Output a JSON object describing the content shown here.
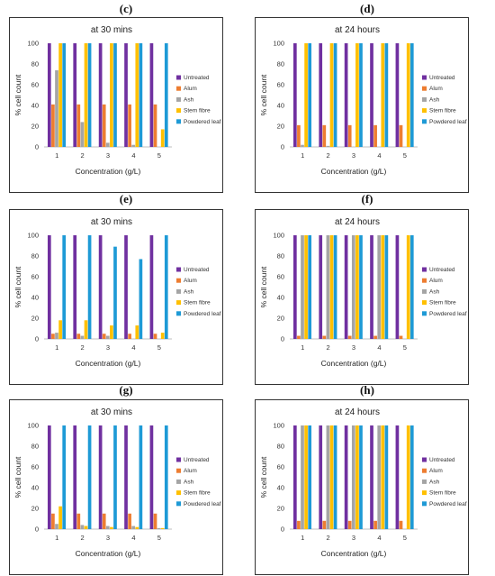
{
  "colors": {
    "Untreated": "#7030A0",
    "Alum": "#ED7D31",
    "Ash": "#A5A5A5",
    "Stem fibre": "#FFC000",
    "Powdered leaf": "#1E9AD6"
  },
  "chart_data": [
    {
      "panel": "(c)",
      "type": "bar",
      "title": "at 30 mins",
      "xlabel": "Concentration (g/L)",
      "ylabel": "% cell count",
      "ylim": [
        0,
        100
      ],
      "yticks": [
        0,
        20,
        40,
        60,
        80,
        100
      ],
      "categories": [
        "1",
        "2",
        "3",
        "4",
        "5"
      ],
      "series": [
        {
          "name": "Untreated",
          "values": [
            100,
            100,
            100,
            100,
            100
          ]
        },
        {
          "name": "Alum",
          "values": [
            41,
            41,
            41,
            41,
            41
          ]
        },
        {
          "name": "Ash",
          "values": [
            74,
            24,
            4,
            2,
            0
          ]
        },
        {
          "name": "Stem fibre",
          "values": [
            100,
            100,
            100,
            100,
            17
          ]
        },
        {
          "name": "Powdered leaf",
          "values": [
            100,
            100,
            100,
            100,
            100
          ]
        }
      ]
    },
    {
      "panel": "(d)",
      "type": "bar",
      "title": "at 24 hours",
      "xlabel": "Concentration (g/L)",
      "ylabel": "% cell count",
      "ylim": [
        0,
        100
      ],
      "yticks": [
        0,
        20,
        40,
        60,
        80,
        100
      ],
      "categories": [
        "1",
        "2",
        "3",
        "4",
        "5"
      ],
      "series": [
        {
          "name": "Untreated",
          "values": [
            100,
            100,
            100,
            100,
            100
          ]
        },
        {
          "name": "Alum",
          "values": [
            21,
            21,
            21,
            21,
            21
          ]
        },
        {
          "name": "Ash",
          "values": [
            2,
            1,
            0,
            0,
            0
          ]
        },
        {
          "name": "Stem fibre",
          "values": [
            100,
            100,
            100,
            100,
            100
          ]
        },
        {
          "name": "Powdered leaf",
          "values": [
            100,
            100,
            100,
            100,
            100
          ]
        }
      ]
    },
    {
      "panel": "(e)",
      "type": "bar",
      "title": "at 30 mins",
      "xlabel": "Concentration (g/L)",
      "ylabel": "% cell count",
      "ylim": [
        0,
        100
      ],
      "yticks": [
        0,
        20,
        40,
        60,
        80,
        100
      ],
      "categories": [
        "1",
        "2",
        "3",
        "4",
        "5"
      ],
      "series": [
        {
          "name": "Untreated",
          "values": [
            100,
            100,
            100,
            100,
            100
          ]
        },
        {
          "name": "Alum",
          "values": [
            5,
            5,
            5,
            5,
            5
          ]
        },
        {
          "name": "Ash",
          "values": [
            6,
            3,
            3,
            0,
            0
          ]
        },
        {
          "name": "Stem fibre",
          "values": [
            18,
            18,
            13,
            13,
            6
          ]
        },
        {
          "name": "Powdered leaf",
          "values": [
            100,
            100,
            89,
            77,
            100
          ]
        }
      ]
    },
    {
      "panel": "(f)",
      "type": "bar",
      "title": "at 24 hours",
      "xlabel": "Concentration (g/L)",
      "ylabel": "% cell count",
      "ylim": [
        0,
        100
      ],
      "yticks": [
        0,
        20,
        40,
        60,
        80,
        100
      ],
      "categories": [
        "1",
        "2",
        "3",
        "4",
        "5"
      ],
      "series": [
        {
          "name": "Untreated",
          "values": [
            100,
            100,
            100,
            100,
            100
          ]
        },
        {
          "name": "Alum",
          "values": [
            3,
            3,
            3,
            3,
            3
          ]
        },
        {
          "name": "Ash",
          "values": [
            100,
            100,
            100,
            100,
            0
          ]
        },
        {
          "name": "Stem fibre",
          "values": [
            100,
            100,
            100,
            100,
            100
          ]
        },
        {
          "name": "Powdered leaf",
          "values": [
            100,
            100,
            100,
            100,
            100
          ]
        }
      ]
    },
    {
      "panel": "(g)",
      "type": "bar",
      "title": "at 30 mins",
      "xlabel": "Concentration (g/L)",
      "ylabel": "% cell count",
      "ylim": [
        0,
        100
      ],
      "yticks": [
        0,
        20,
        40,
        60,
        80,
        100
      ],
      "categories": [
        "1",
        "2",
        "3",
        "4",
        "5"
      ],
      "series": [
        {
          "name": "Untreated",
          "values": [
            100,
            100,
            100,
            100,
            100
          ]
        },
        {
          "name": "Alum",
          "values": [
            15,
            15,
            15,
            15,
            15
          ]
        },
        {
          "name": "Ash",
          "values": [
            5,
            4,
            3,
            3,
            1
          ]
        },
        {
          "name": "Stem fibre",
          "values": [
            22,
            3,
            2,
            2,
            1
          ]
        },
        {
          "name": "Powdered leaf",
          "values": [
            100,
            100,
            100,
            100,
            100
          ]
        }
      ]
    },
    {
      "panel": "(h)",
      "type": "bar",
      "title": "at 24 hours",
      "xlabel": "Concentration (g/L)",
      "ylabel": "% cell count",
      "ylim": [
        0,
        100
      ],
      "yticks": [
        0,
        20,
        40,
        60,
        80,
        100
      ],
      "categories": [
        "1",
        "2",
        "3",
        "4",
        "5"
      ],
      "series": [
        {
          "name": "Untreated",
          "values": [
            100,
            100,
            100,
            100,
            100
          ]
        },
        {
          "name": "Alum",
          "values": [
            8,
            8,
            8,
            8,
            8
          ]
        },
        {
          "name": "Ash",
          "values": [
            100,
            100,
            100,
            100,
            0
          ]
        },
        {
          "name": "Stem fibre",
          "values": [
            100,
            100,
            100,
            100,
            100
          ]
        },
        {
          "name": "Powdered leaf",
          "values": [
            100,
            100,
            100,
            100,
            100
          ]
        }
      ]
    }
  ]
}
